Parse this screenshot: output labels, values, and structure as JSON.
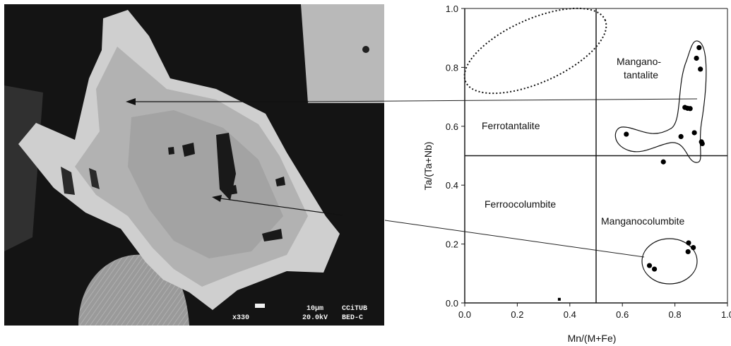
{
  "sem_image": {
    "magnification": "x330",
    "scale_bar": "10µm",
    "lab": "CCiTUB",
    "voltage": "20.0kV",
    "detector": "BED-C"
  },
  "chart_data": {
    "type": "scatter",
    "xlabel": "Mn/(M+Fe)",
    "ylabel": "Ta/(Ta+Nb)",
    "xlim": [
      0,
      1
    ],
    "ylim": [
      0,
      1
    ],
    "x_ticks": [
      "0.0",
      "0.2",
      "0.4",
      "0.6",
      "0.8",
      "1.0"
    ],
    "y_ticks": [
      "0.0",
      "0.2",
      "0.4",
      "0.6",
      "0.8",
      "1.0"
    ],
    "divider_x": 0.5,
    "divider_y": 0.5,
    "field_labels": {
      "mangano_tantalite_line1": "Mangano-",
      "mangano_tantalite_line2": "tantalite",
      "ferrotantalite": "Ferrotantalite",
      "ferrocolumbite": "Ferroocolumbite",
      "manganocolumbite": "Manganocolumbite"
    },
    "points": [
      {
        "x": 0.892,
        "y": 0.867
      },
      {
        "x": 0.882,
        "y": 0.831
      },
      {
        "x": 0.897,
        "y": 0.794
      },
      {
        "x": 0.838,
        "y": 0.664
      },
      {
        "x": 0.848,
        "y": 0.661
      },
      {
        "x": 0.858,
        "y": 0.66
      },
      {
        "x": 0.615,
        "y": 0.573
      },
      {
        "x": 0.823,
        "y": 0.565
      },
      {
        "x": 0.874,
        "y": 0.578
      },
      {
        "x": 0.901,
        "y": 0.547
      },
      {
        "x": 0.904,
        "y": 0.541
      },
      {
        "x": 0.756,
        "y": 0.479
      },
      {
        "x": 0.852,
        "y": 0.204
      },
      {
        "x": 0.87,
        "y": 0.188
      },
      {
        "x": 0.85,
        "y": 0.174
      },
      {
        "x": 0.703,
        "y": 0.127
      },
      {
        "x": 0.722,
        "y": 0.115
      }
    ],
    "colors": {
      "points": "#000000",
      "axes": "#1a1a1a"
    }
  }
}
